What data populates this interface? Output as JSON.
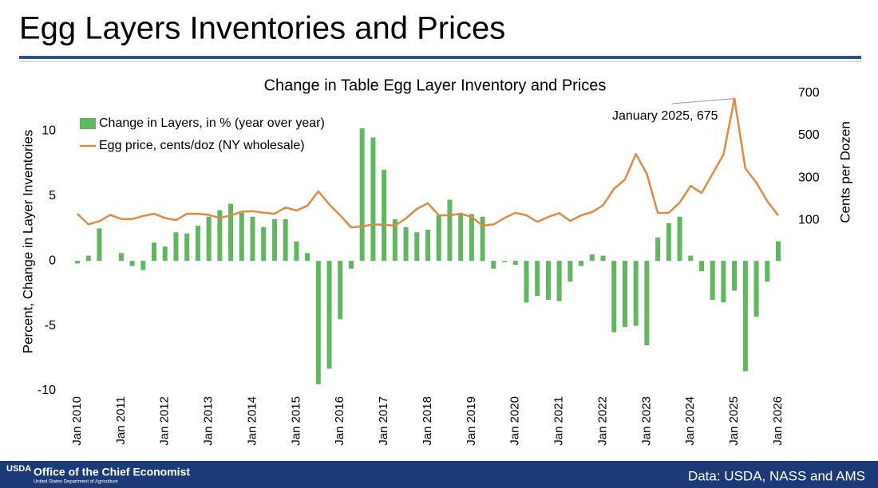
{
  "header": {
    "title": "Egg Layers Inventories and Prices"
  },
  "footer": {
    "logo": "USDA",
    "office": "Office of the Chief Economist",
    "department": "United States Department of Agriculture",
    "source": "Data: USDA, NASS and AMS"
  },
  "chart_data": {
    "type": "combo",
    "title": "Change in Table Egg Layer Inventory and Prices",
    "y_label": "Percent, Change in Layer Inventories",
    "y2_label": "Cents per Dozen",
    "annotation": "January 2025, 675",
    "categories": [
      "Jan 2010",
      null,
      null,
      null,
      "Jan 2011",
      null,
      null,
      null,
      "Jan 2012",
      null,
      null,
      null,
      "Jan 2013",
      null,
      null,
      null,
      "Jan 2014",
      null,
      null,
      null,
      "Jan 2015",
      null,
      null,
      null,
      "Jan 2016",
      null,
      null,
      null,
      "Jan 2017",
      null,
      null,
      null,
      "Jan 2018",
      null,
      null,
      null,
      "Jan 2019",
      null,
      null,
      null,
      "Jan 2020",
      null,
      null,
      null,
      "Jan 2021",
      null,
      null,
      null,
      "Jan 2022",
      null,
      null,
      null,
      "Jan 2023",
      null,
      null,
      null,
      "Jan 2024",
      null,
      null,
      null,
      "Jan 2025",
      null,
      null,
      null,
      "Jan 2026"
    ],
    "series": [
      {
        "name": "Change in Layers, in % (year over year)",
        "type": "bar",
        "axis": "y",
        "color": "#5fb760",
        "values": [
          -0.2,
          0.4,
          2.5,
          0,
          0.6,
          -0.4,
          -0.7,
          1.4,
          1.1,
          2.2,
          2.1,
          2.7,
          3.4,
          3.9,
          4.4,
          3.7,
          3.4,
          2.6,
          3.2,
          3.2,
          1.5,
          0.6,
          -9.5,
          -8.3,
          -4.5,
          -0.6,
          10.2,
          9.5,
          7.0,
          3.2,
          2.6,
          2.2,
          2.4,
          3.5,
          4.7,
          3.7,
          3.6,
          3.4,
          -0.6,
          -0.1,
          -0.3,
          -3.2,
          -2.7,
          -3.0,
          -3.1,
          -1.6,
          -0.4,
          0.5,
          0.4,
          -5.5,
          -5.1,
          -5.0,
          -6.5,
          1.8,
          2.9,
          3.4,
          0.4,
          -0.8,
          -3.0,
          -3.2,
          -2.3,
          -8.5,
          -4.3,
          -1.6,
          1.5
        ]
      },
      {
        "name": "Egg price, cents/doz (NY wholesale)",
        "type": "line",
        "axis": "y2",
        "color": "#e08a45",
        "values": [
          130,
          80,
          95,
          125,
          105,
          105,
          120,
          130,
          110,
          100,
          130,
          130,
          125,
          110,
          122,
          140,
          142,
          135,
          130,
          160,
          145,
          168,
          236,
          175,
          122,
          66,
          70,
          80,
          78,
          74,
          108,
          153,
          180,
          123,
          123,
          130,
          115,
          74,
          80,
          110,
          135,
          123,
          92,
          115,
          133,
          96,
          123,
          138,
          170,
          248,
          292,
          413,
          319,
          134,
          134,
          183,
          262,
          228,
          319,
          410,
          675,
          345,
          277,
          190,
          122
        ]
      }
    ],
    "ylim": [
      -10,
      12.9
    ],
    "yticks": [
      -10,
      -5,
      0,
      5,
      10
    ],
    "y2lim": [
      -707,
      700
    ],
    "y2ticks": [
      100,
      300,
      500,
      700
    ],
    "grid": false,
    "legend": "upper-left"
  }
}
